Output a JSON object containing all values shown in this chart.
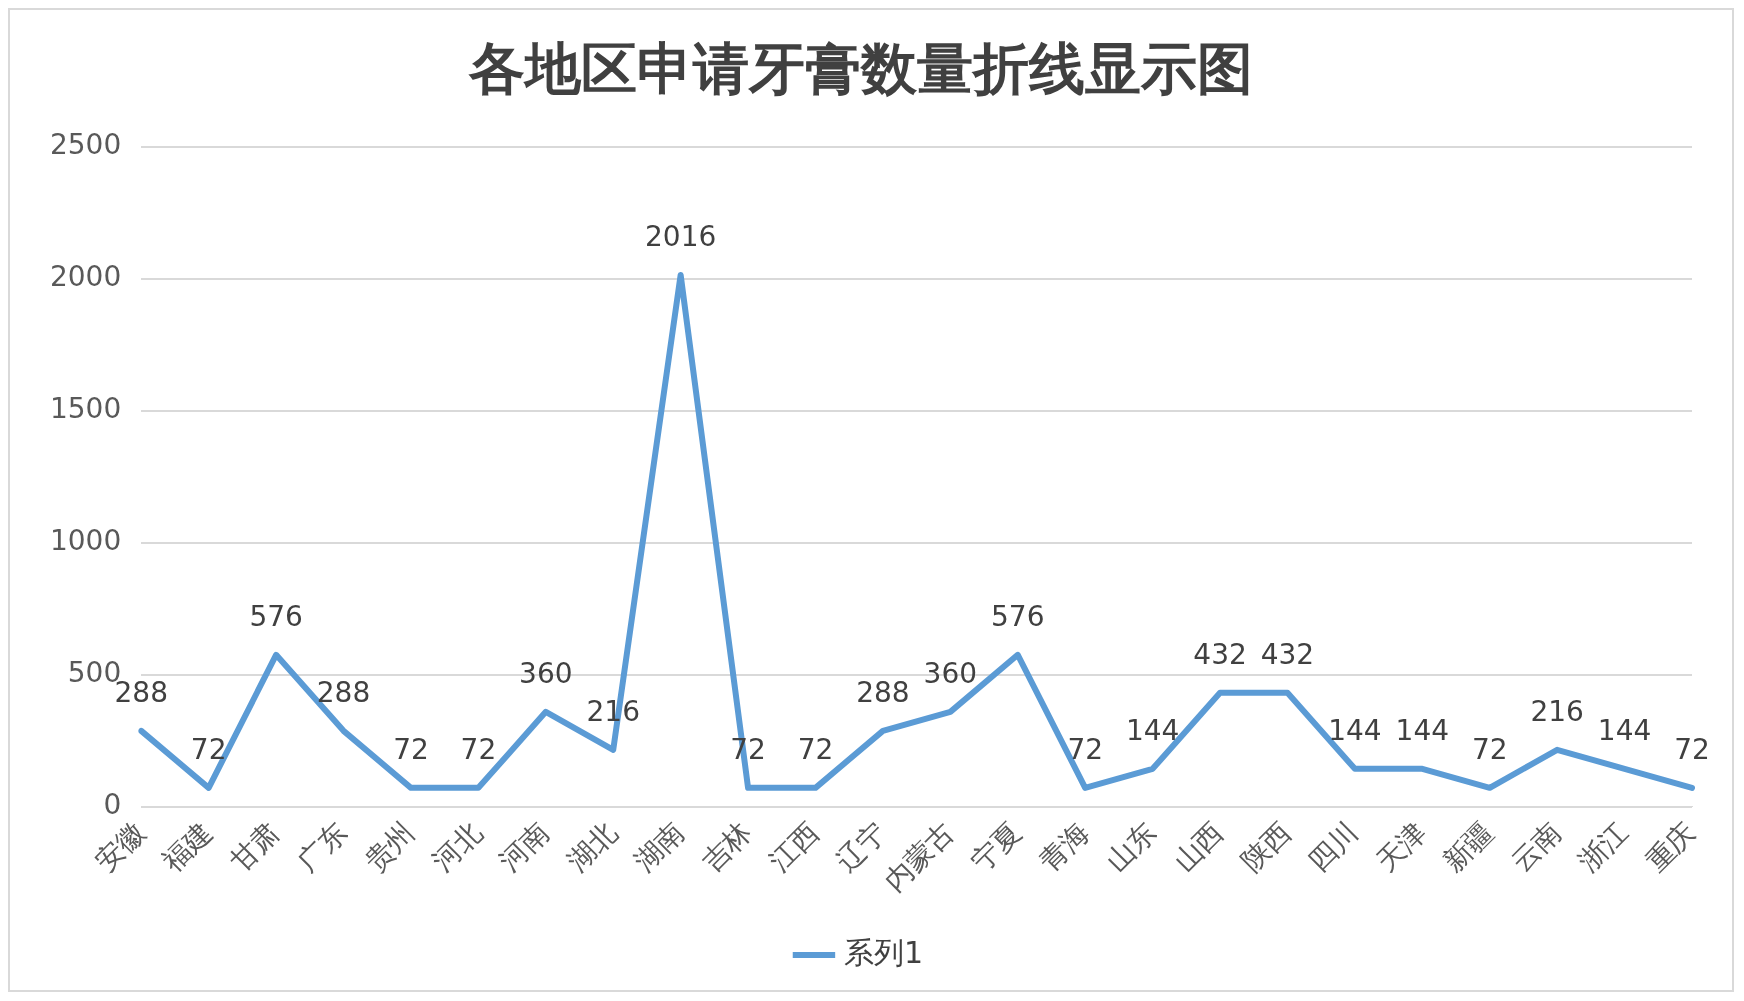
{
  "chart_data": {
    "type": "line",
    "title": "各地区申请牙膏数量折线显示图",
    "categories": [
      "安徽",
      "福建",
      "甘肃",
      "广东",
      "贵州",
      "河北",
      "河南",
      "湖北",
      "湖南",
      "吉林",
      "江西",
      "辽宁",
      "内蒙古",
      "宁夏",
      "青海",
      "山东",
      "山西",
      "陕西",
      "四川",
      "天津",
      "新疆",
      "云南",
      "浙江",
      "重庆"
    ],
    "series": [
      {
        "name": "系列1",
        "color": "#5b9bd5",
        "values": [
          288,
          72,
          576,
          288,
          72,
          72,
          360,
          216,
          2016,
          72,
          72,
          288,
          360,
          576,
          72,
          144,
          432,
          432,
          144,
          144,
          72,
          216,
          144,
          72
        ]
      }
    ],
    "ylim": [
      0,
      2500
    ],
    "yticks": [
      0,
      500,
      1000,
      1500,
      2000,
      2500
    ],
    "grid": "y",
    "legend": "bottom",
    "marker": "none",
    "line_style": "solid",
    "data_labels": true
  }
}
